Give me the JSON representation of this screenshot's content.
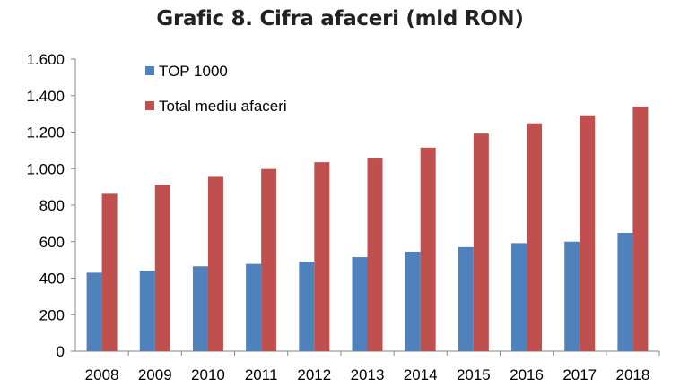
{
  "chart_data": {
    "type": "bar",
    "title": "Grafic 8. Cifra afaceri (mld RON)",
    "categories": [
      "2008",
      "2009",
      "2010",
      "2011",
      "2012",
      "2013",
      "2014",
      "2015",
      "2016",
      "2017",
      "2018"
    ],
    "series": [
      {
        "name": "TOP 1000",
        "color": "#4f81bd",
        "values": [
          430,
          440,
          465,
          478,
          490,
          515,
          545,
          570,
          592,
          600,
          648
        ]
      },
      {
        "name": "Total mediu afaceri",
        "color": "#c0504d",
        "values": [
          862,
          912,
          955,
          998,
          1035,
          1060,
          1115,
          1192,
          1248,
          1292,
          1340
        ]
      }
    ],
    "ylim": [
      0,
      1600
    ],
    "yticks": [
      0,
      200,
      400,
      600,
      800,
      1000,
      1200,
      1400,
      1600
    ],
    "ytick_labels": [
      "0",
      "200",
      "400",
      "600",
      "800",
      "1.000",
      "1.200",
      "1.400",
      "1.600"
    ],
    "xlabel": "",
    "ylabel": "",
    "grid": false,
    "legend": "top-left"
  }
}
